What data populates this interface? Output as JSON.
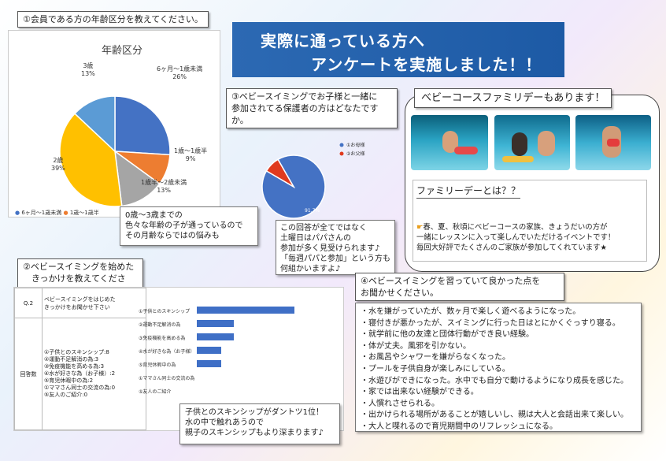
{
  "banner": {
    "line1": "実際に通っている方へ",
    "line2": "アンケートを実施しました！！"
  },
  "q1": {
    "heading": "①会員である方の年齢区分を教えてください。",
    "chart_title": "年齢区分",
    "note": "0歳～3歳までの\n色々な年齢の子が通っているので\nその月齢ならではの悩みも",
    "legend": [
      "6ヶ月～1歳未満",
      "1歳～1歳半"
    ]
  },
  "q3": {
    "heading": "③ベビースイミングでお子様と一緒に\n参加されてる保護者の方はどなたですか。",
    "legend": [
      "①お母様",
      "②お父様"
    ],
    "slice_label": "91.7%",
    "note": "この回答が全てではなく\n土曜日はパパさんの\n参加が多く見受けられます♪\n「毎週パパと参加」という方も\n何組かいますよ♪"
  },
  "family": {
    "title": "ベビーコースファミリデーもあります！",
    "subtitle": "ファミリーデーとは？？",
    "body": "春、夏、秋頃にベビーコースの家族、きょうだいの方が\n一緒にレッスンに入って楽しんでいただけるイベントです！\n毎回大好評でたくさんのご家族が参加してくれています★"
  },
  "q2": {
    "heading": "②ベビースイミングを始めた\n　きっかけを教えてください。",
    "table": {
      "q_label": "Q.2",
      "q_text": "ベビースイミングをはじめた\nきっかけをお聞かせ下さい",
      "a_label": "回答数",
      "answers": "①子供とのスキンシップ:8\n②運動不足解消の為:3\n③免疫機能を高める為:3\n④水が好きな為（お子様）:2\n⑤育児休暇中の為:2\n①ママさん同士の交流の為:0\n⑤友人のご紹介:0"
    },
    "note": "子供とのスキンシップがダントツ1位！\n水の中で触れあうので\n親子のスキンシップもより深まります♪"
  },
  "q4": {
    "heading": "④ベビースイミングを習っていて良かった点を\nお聞かせください。",
    "items": [
      "・水を嫌がっていたが、数ヶ月で楽しく遊べるようになった。",
      "・寝付きが悪かったが、スイミングに行った日はとにかくぐっすり寝る。",
      "・就学前に他の友達と団体行動ができ良い経験。",
      "・体が丈夫。風邪を引かない。",
      "・お風呂やシャワーを嫌がらなくなった。",
      "・プールを子供自身が楽しみにしている。",
      "・水遊びができになった。水中でも自分で動けるようになり成長を感じた。",
      "・家では出来ない経験ができる。",
      "・人慣れさせられる。",
      "・出かけられる場所があることが嬉しいし、親は大人と会話出来て楽しい。",
      "・大人と喋れるので育児期間中のリフレッシュになる。"
    ]
  },
  "chart_data": [
    {
      "type": "pie",
      "title": "年齢区分",
      "categories": [
        "6ヶ月～1歳未満",
        "1歳～1歳半",
        "1歳半～2歳未満",
        "2歳",
        "3歳"
      ],
      "values": [
        26,
        9,
        13,
        39,
        13
      ],
      "value_labels": [
        "26%",
        "9%",
        "13%",
        "39%",
        "13%"
      ],
      "colors": [
        "#4472c4",
        "#ed7d31",
        "#a5a5a5",
        "#ffc000",
        "#5b9bd5"
      ]
    },
    {
      "type": "pie",
      "categories": [
        "①お母様",
        "②お父様"
      ],
      "values": [
        91.7,
        8.3
      ],
      "colors": [
        "#4472c4",
        "#e03a1e"
      ]
    },
    {
      "type": "bar",
      "orientation": "horizontal",
      "categories": [
        "①子供とのスキンシップ",
        "②運動不足解消の為",
        "③免疫機能を高める為",
        "④水が好きな為（お子様）",
        "⑤育児休暇中の為",
        "①ママさん同士の交流の為",
        "⑤友人のご紹介"
      ],
      "values": [
        8,
        3,
        3,
        2,
        2,
        0,
        0
      ],
      "colors": [
        "#3f6fc6"
      ]
    }
  ]
}
